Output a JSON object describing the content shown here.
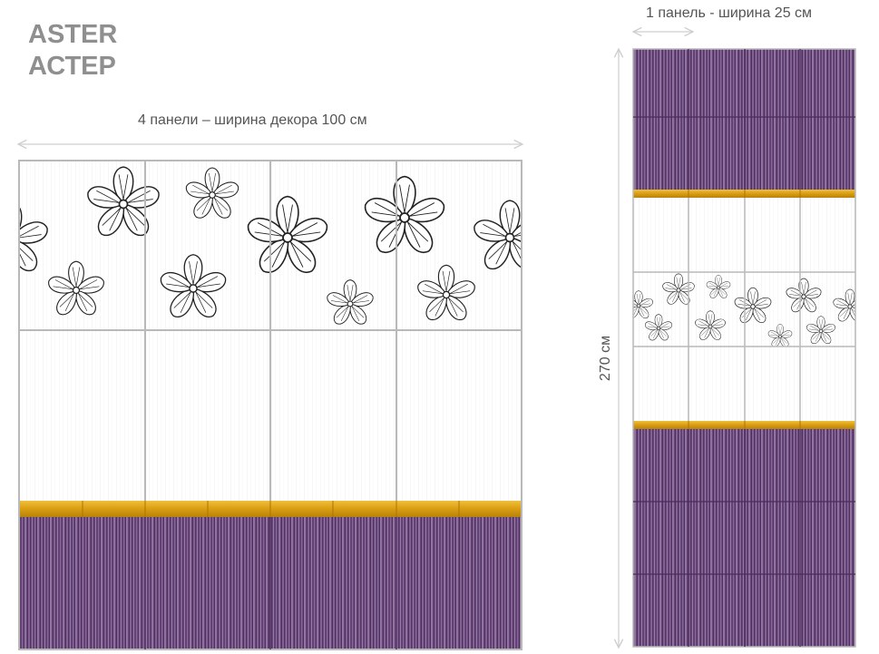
{
  "title": {
    "latin": "ASTER",
    "cyrillic": "АСТЕР"
  },
  "dimensions": {
    "four_panels_width": "4 панели – ширина декора 100 см",
    "one_panel_width": "1 панель - ширина 25 см",
    "height": "270 см"
  },
  "colors": {
    "purple_stripe": "#6e4a7e",
    "purple_dark": "#4f2f60",
    "gold_border": "#e0a81a",
    "grout": "#b9b9b9",
    "arrow": "#cfcfcf",
    "title": "#8f8f8f"
  },
  "panels": {
    "large_count": 4,
    "small_count": 4
  }
}
